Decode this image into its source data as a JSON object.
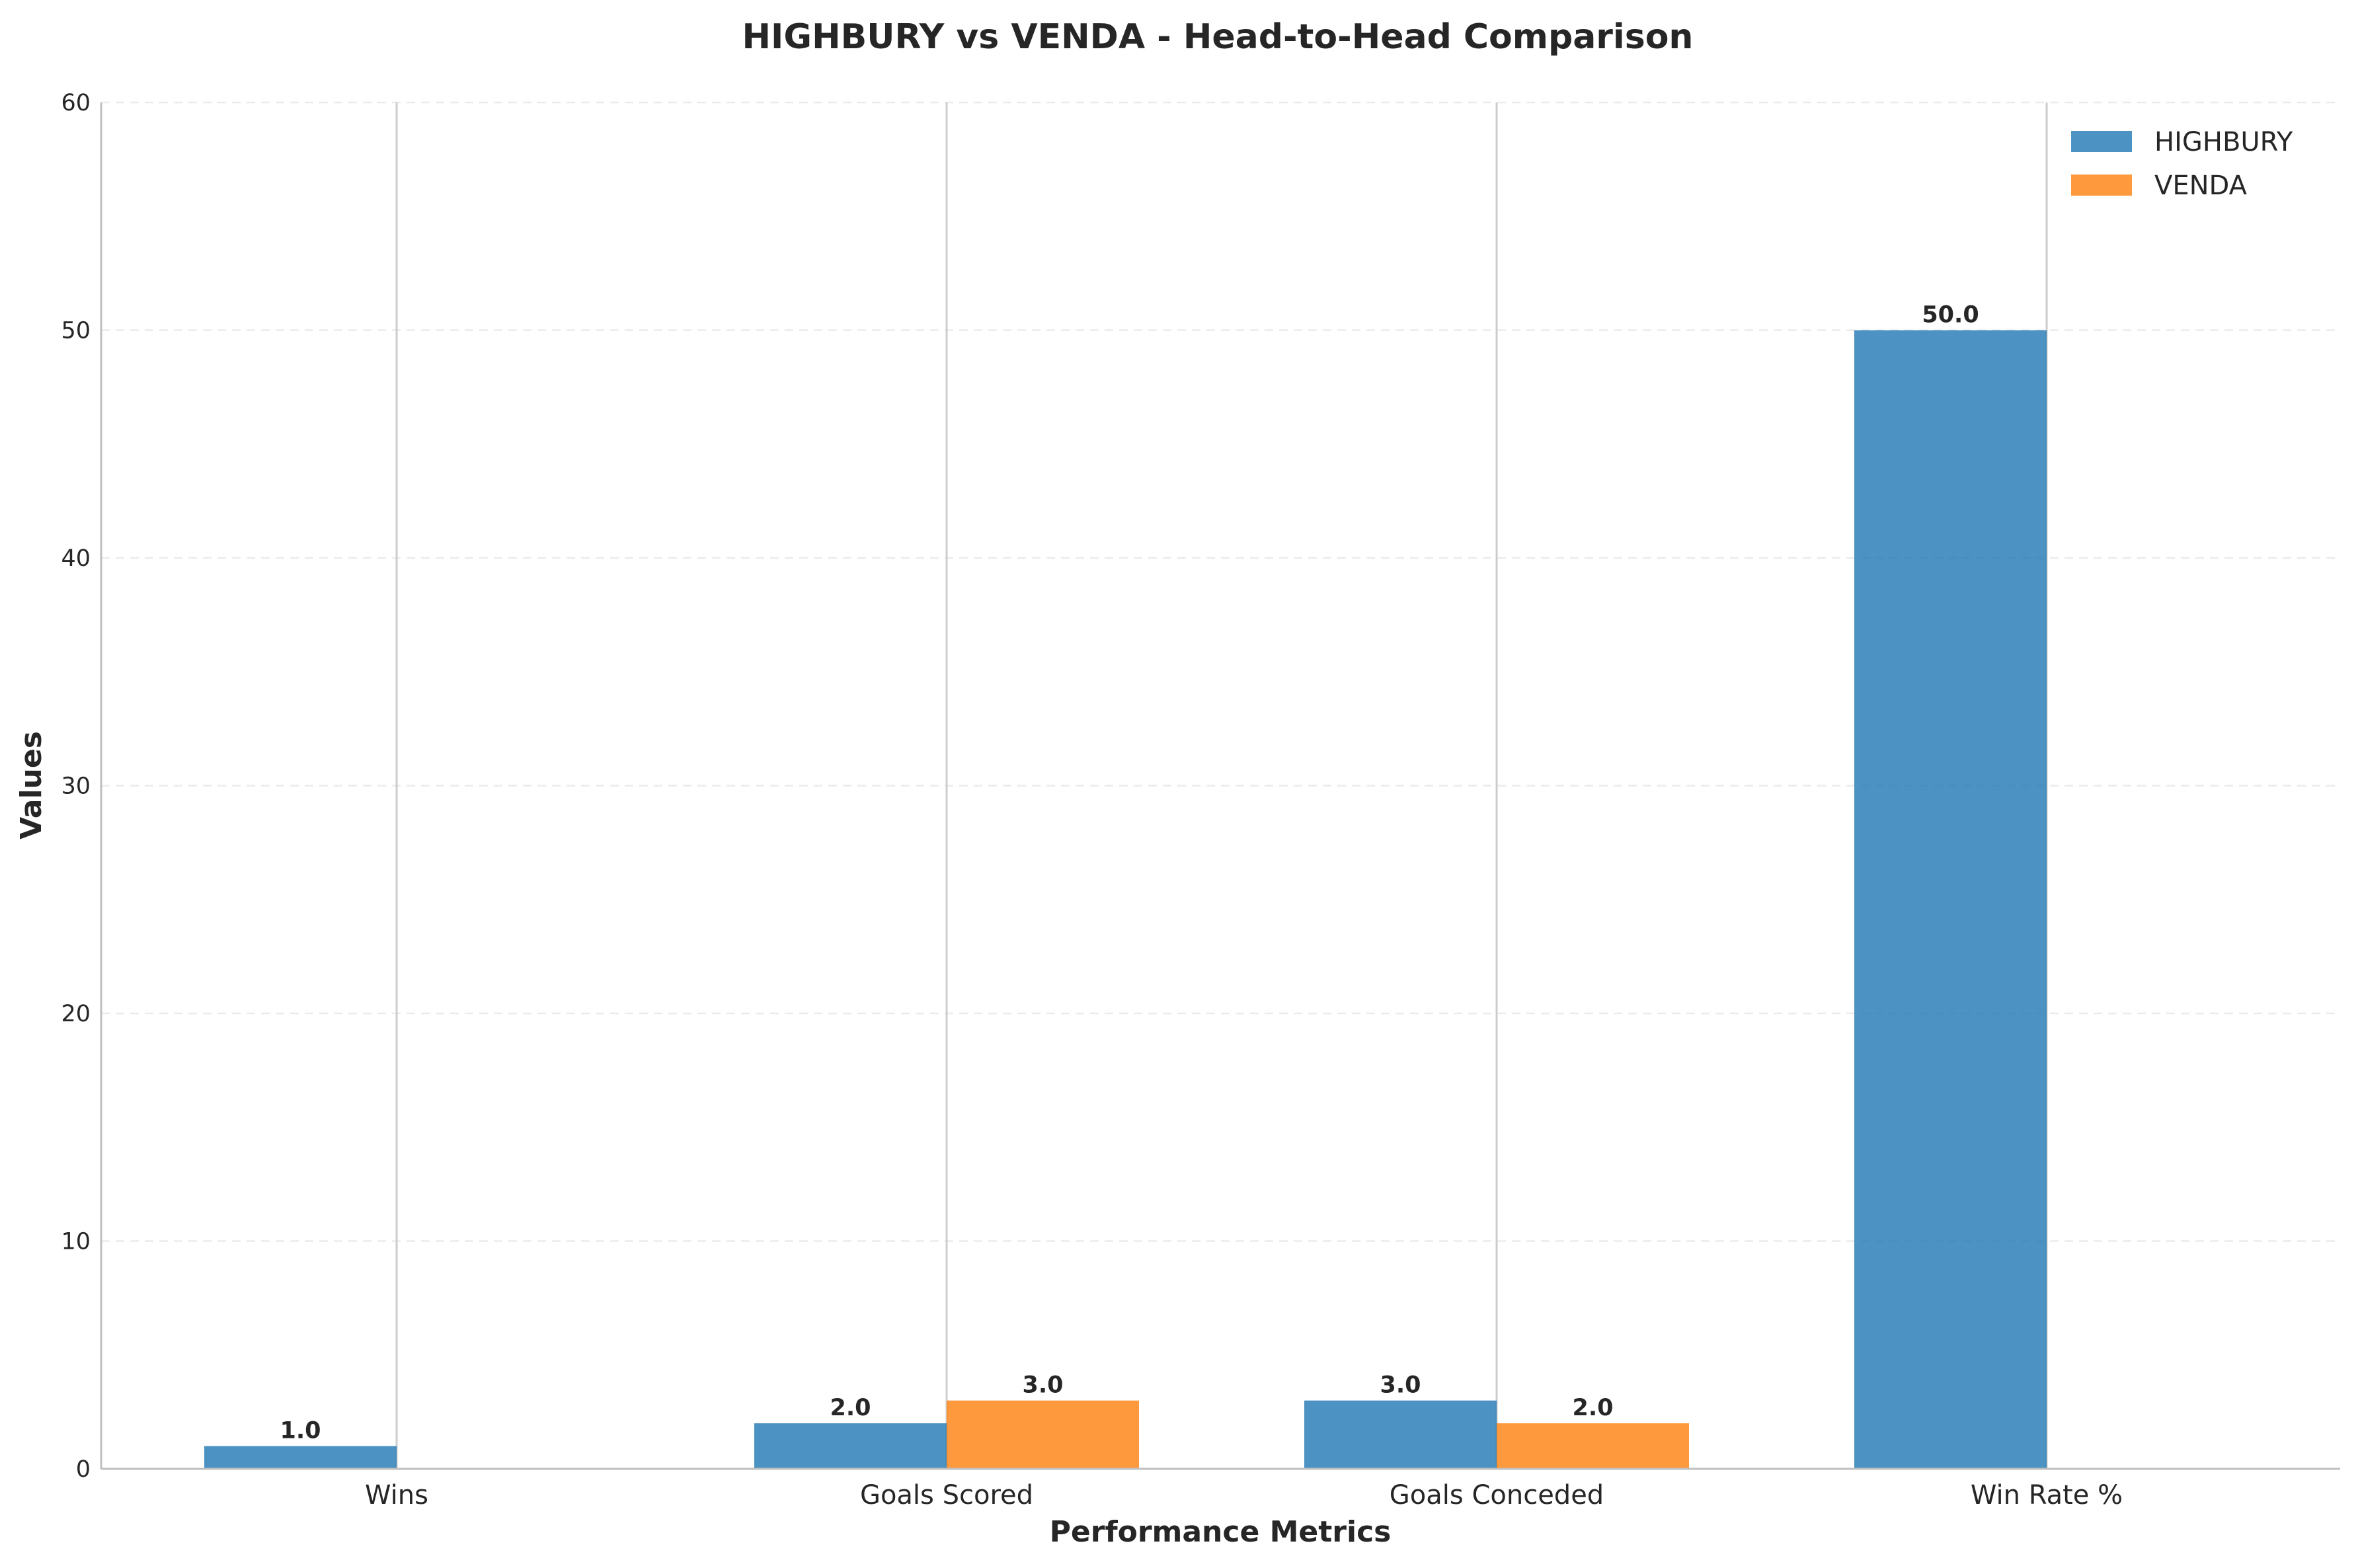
{
  "chart_data": {
    "type": "bar",
    "title": "HIGHBURY vs VENDA - Head-to-Head Comparison",
    "xlabel": "Performance Metrics",
    "ylabel": "Values",
    "categories": [
      "Wins",
      "Goals Scored",
      "Goals Conceded",
      "Win Rate %"
    ],
    "series": [
      {
        "name": "HIGHBURY",
        "color": "#1f77b4",
        "values": [
          1.0,
          2.0,
          3.0,
          50.0
        ],
        "labels": [
          "1.0",
          "2.0",
          "3.0",
          "50.0"
        ]
      },
      {
        "name": "VENDA",
        "color": "#ff7f0e",
        "values": [
          0.0,
          3.0,
          2.0,
          0.0
        ],
        "labels": [
          "",
          "3.0",
          "2.0",
          ""
        ]
      }
    ],
    "ylim": [
      0,
      60
    ],
    "yticks": [
      0,
      10,
      20,
      30,
      40,
      50,
      60
    ],
    "ytick_labels": [
      "0",
      "10",
      "20",
      "30",
      "40",
      "50",
      "60"
    ],
    "grid": "horizontal dashed",
    "legend_position": "top-right"
  }
}
